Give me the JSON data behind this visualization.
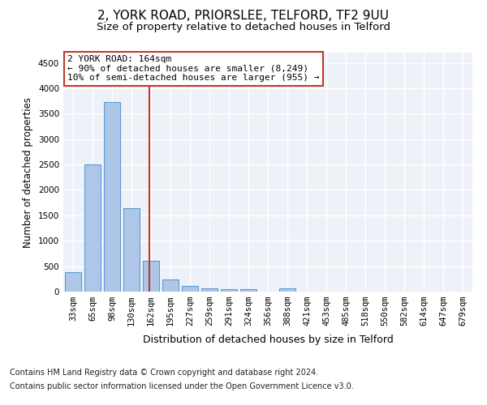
{
  "title1": "2, YORK ROAD, PRIORSLEE, TELFORD, TF2 9UU",
  "title2": "Size of property relative to detached houses in Telford",
  "xlabel": "Distribution of detached houses by size in Telford",
  "ylabel": "Number of detached properties",
  "categories": [
    "33sqm",
    "65sqm",
    "98sqm",
    "130sqm",
    "162sqm",
    "195sqm",
    "227sqm",
    "259sqm",
    "291sqm",
    "324sqm",
    "356sqm",
    "388sqm",
    "421sqm",
    "453sqm",
    "485sqm",
    "518sqm",
    "550sqm",
    "582sqm",
    "614sqm",
    "647sqm",
    "679sqm"
  ],
  "values": [
    375,
    2500,
    3725,
    1640,
    600,
    240,
    110,
    70,
    55,
    55,
    0,
    70,
    0,
    0,
    0,
    0,
    0,
    0,
    0,
    0,
    0
  ],
  "bar_color": "#aec6e8",
  "bar_edge_color": "#5b9bd5",
  "vline_color": "#c0392b",
  "annotation_text": "2 YORK ROAD: 164sqm\n← 90% of detached houses are smaller (8,249)\n10% of semi-detached houses are larger (955) →",
  "annotation_box_color": "#ffffff",
  "annotation_box_edge": "#c0392b",
  "ylim": [
    0,
    4700
  ],
  "yticks": [
    0,
    500,
    1000,
    1500,
    2000,
    2500,
    3000,
    3500,
    4000,
    4500
  ],
  "footer1": "Contains HM Land Registry data © Crown copyright and database right 2024.",
  "footer2": "Contains public sector information licensed under the Open Government Licence v3.0.",
  "bg_color": "#eef2f8",
  "grid_color": "#ffffff",
  "title1_fontsize": 11,
  "title2_fontsize": 9.5,
  "ylabel_fontsize": 8.5,
  "xlabel_fontsize": 9,
  "tick_fontsize": 7.5,
  "footer_fontsize": 7,
  "annot_fontsize": 8
}
